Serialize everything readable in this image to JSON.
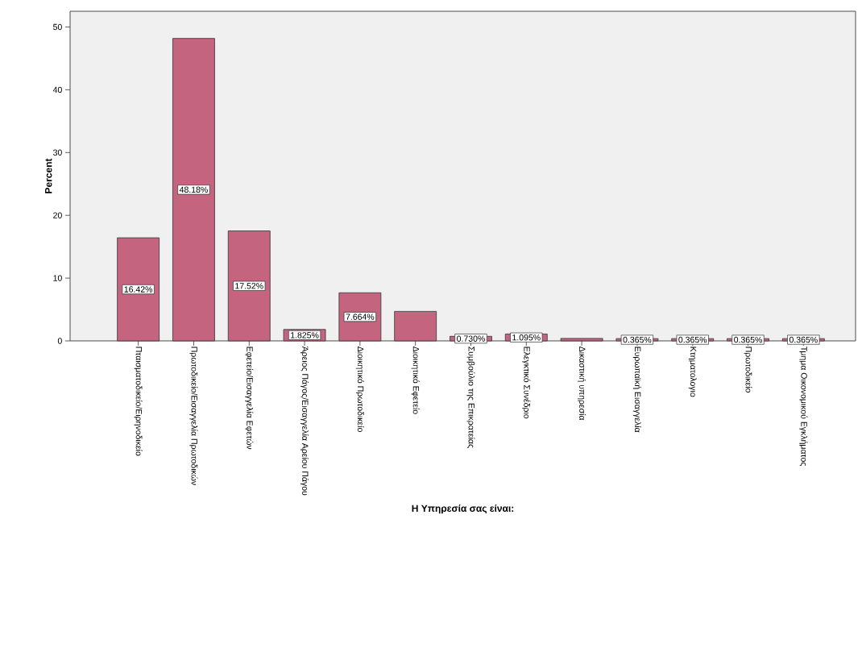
{
  "chart_data": {
    "type": "bar",
    "xlabel": "Η Υπηρεσία σας είναι:",
    "ylabel": "Percent",
    "categories": [
      "Πταισματοδικείο/Ειρηνοδικείο",
      "Πρωτοδικείο/Εισαγγελία Πρωτοδικών",
      "Εφετείο/Εισαγγελία Εφετών",
      "Άρειος Πάγος/Εισαγγελία Αρείου Πάγου",
      "Διοικητικό Πρωτοδικείο",
      "Διοικητικό Εφετείο",
      "Συμβούλιο της Επικρατείας",
      "Ελεγκτικό Συνέδριο",
      "Δικαστική υπηρεσία",
      "Ευρωπαϊκή Εισαγγελία",
      "Κτηματολογιο",
      "Πρωτοδικείο",
      "Τμημα Οικονομικού Εγκλήματος"
    ],
    "values": [
      16.42,
      48.18,
      17.52,
      1.825,
      7.664,
      4.7,
      0.73,
      1.095,
      0.4,
      0.365,
      0.365,
      0.365,
      0.365
    ],
    "value_labels": [
      "16.42%",
      "48.18%",
      "17.52%",
      "1.825%",
      "7.664%",
      null,
      "0.730%",
      "1.095%",
      null,
      "0.365%",
      "0.365%",
      "0.365%",
      "0.365%"
    ],
    "color": "#c5647f",
    "ylim": [
      0,
      52.5
    ],
    "yticks": [
      0,
      10,
      20,
      30,
      40,
      50
    ]
  }
}
